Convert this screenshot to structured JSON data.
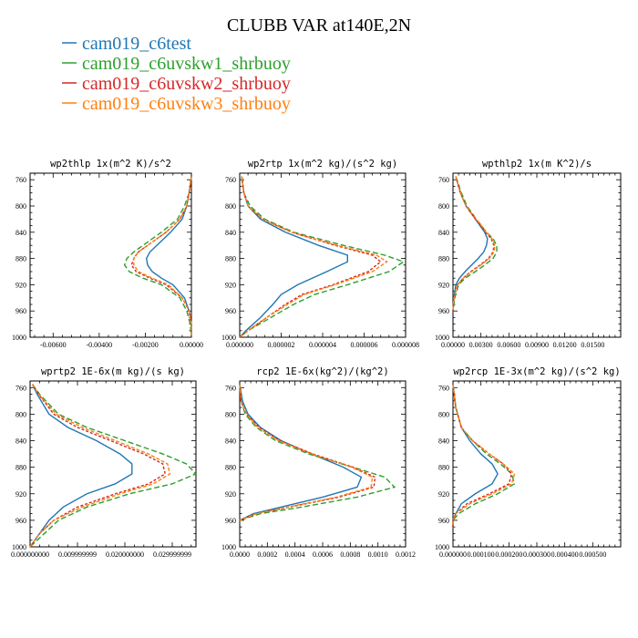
{
  "figure": {
    "title": "CLUBB VAR at140E,2N",
    "legend": [
      {
        "name": "cam019_c6test",
        "color": "#1f77b4"
      },
      {
        "name": "cam019_c6uvskw1_shrbuoy",
        "color": "#2ca02c"
      },
      {
        "name": "cam019_c6uvskw2_shrbuoy",
        "color": "#d62728"
      },
      {
        "name": "cam019_c6uvskw3_shrbuoy",
        "color": "#ff7f0e"
      }
    ]
  },
  "chart_data": [
    {
      "type": "line",
      "title": "wp2thlp  1x(m^2 K)/s^2",
      "xlim": [
        -0.007,
        0.0
      ],
      "ylim": [
        1000,
        750
      ],
      "xticks": [
        -0.006,
        -0.004,
        -0.002,
        0.0
      ],
      "xtick_labels": [
        "-0.00600",
        "-0.00400",
        "-0.00200",
        "0.00000"
      ],
      "yticks": [
        760,
        800,
        840,
        880,
        920,
        960,
        1000
      ],
      "ytick_labels": [
        "760",
        "800",
        "840",
        "880",
        "920",
        "960",
        "1000"
      ],
      "y": [
        755,
        780,
        800,
        820,
        840,
        860,
        870,
        880,
        890,
        900,
        910,
        920,
        940,
        960,
        980,
        1000
      ],
      "series": [
        {
          "values": [
            0.0,
            -0.0001,
            -0.0002,
            -0.0004,
            -0.0009,
            -0.0015,
            -0.0018,
            -0.00195,
            -0.0019,
            -0.0017,
            -0.0013,
            -0.0008,
            -0.0003,
            -0.0001,
            0.0,
            0.0
          ]
        },
        {
          "values": [
            0.0,
            -0.0001,
            -0.0003,
            -0.0006,
            -0.0013,
            -0.0021,
            -0.0025,
            -0.0028,
            -0.0029,
            -0.0027,
            -0.0021,
            -0.0013,
            -0.0005,
            -0.0002,
            -5e-05,
            0.0
          ]
        },
        {
          "values": [
            0.0,
            -0.0001,
            -0.0002,
            -0.0005,
            -0.0011,
            -0.0019,
            -0.0023,
            -0.0025,
            -0.0026,
            -0.0024,
            -0.0018,
            -0.0011,
            -0.0004,
            -0.0001,
            0.0,
            0.0
          ]
        },
        {
          "values": [
            0.0,
            -0.0001,
            -0.0002,
            -0.0005,
            -0.0011,
            -0.0019,
            -0.0023,
            -0.0025,
            -0.0025,
            -0.0023,
            -0.0017,
            -0.001,
            -0.0004,
            -0.0001,
            0.0,
            0.0
          ]
        }
      ]
    },
    {
      "type": "line",
      "title": "wp2rtp  1x(m^2 kg)/(s^2 kg)",
      "xlim": [
        0.0,
        8e-06
      ],
      "ylim": [
        1000,
        750
      ],
      "xticks": [
        0.0,
        2e-06,
        4e-06,
        6e-06,
        8e-06
      ],
      "xtick_labels": [
        "0.000000",
        "0.000002",
        "0.000004",
        "0.000006",
        "0.000008"
      ],
      "yticks": [
        760,
        800,
        840,
        880,
        920,
        960,
        1000
      ],
      "ytick_labels": [
        "760",
        "800",
        "840",
        "880",
        "920",
        "960",
        "1000"
      ],
      "y": [
        755,
        780,
        800,
        820,
        840,
        860,
        875,
        885,
        900,
        920,
        935,
        950,
        970,
        990,
        1000
      ],
      "series": [
        {
          "values": [
            1e-07,
            2e-07,
            4e-07,
            1e-06,
            2.2e-06,
            3.8e-06,
            5.2e-06,
            5.2e-06,
            4.2e-06,
            2.8e-06,
            2e-06,
            1.6e-06,
            1e-06,
            3e-07,
            0.0
          ]
        },
        {
          "values": [
            1e-07,
            2e-07,
            5e-07,
            1.2e-06,
            2.6e-06,
            5e-06,
            7e-06,
            7.9e-06,
            7.2e-06,
            5.2e-06,
            3.6e-06,
            2.6e-06,
            1.5e-06,
            4e-07,
            0.0
          ]
        },
        {
          "values": [
            1e-07,
            2e-07,
            4e-07,
            1.1e-06,
            2.5e-06,
            4.6e-06,
            6.4e-06,
            6.8e-06,
            6.2e-06,
            4.5e-06,
            3e-06,
            2.2e-06,
            1.3e-06,
            4e-07,
            0.0
          ]
        },
        {
          "values": [
            1e-07,
            2e-07,
            4e-07,
            1.1e-06,
            2.5e-06,
            4.7e-06,
            6.6e-06,
            7.1e-06,
            6.4e-06,
            4.6e-06,
            3.1e-06,
            2.3e-06,
            1.3e-06,
            4e-07,
            0.0
          ]
        }
      ]
    },
    {
      "type": "line",
      "title": "wpthlp2  1x(m K^2)/s",
      "xlim": [
        0.0,
        0.018
      ],
      "ylim": [
        1000,
        750
      ],
      "xticks": [
        0.0,
        0.003,
        0.006,
        0.009,
        0.012,
        0.015
      ],
      "xtick_labels": [
        "0.00000",
        "0.00300",
        "0.00600",
        "0.00900",
        "0.01200",
        "0.01500"
      ],
      "yticks": [
        760,
        800,
        840,
        880,
        920,
        960,
        1000
      ],
      "ytick_labels": [
        "760",
        "800",
        "840",
        "880",
        "920",
        "960",
        "1000"
      ],
      "y": [
        755,
        780,
        800,
        820,
        840,
        850,
        860,
        870,
        880,
        890,
        900,
        910,
        920,
        940,
        960
      ],
      "series": [
        {
          "values": [
            0.0003,
            0.0008,
            0.0014,
            0.0024,
            0.0034,
            0.0037,
            0.0036,
            0.0033,
            0.0027,
            0.002,
            0.0013,
            0.0007,
            0.0003,
            0.0001,
            0.0
          ]
        },
        {
          "values": [
            0.0003,
            0.0009,
            0.0015,
            0.0025,
            0.0036,
            0.0043,
            0.0047,
            0.0047,
            0.0043,
            0.0034,
            0.0024,
            0.0013,
            0.0006,
            0.0002,
            0.0
          ]
        },
        {
          "values": [
            0.0003,
            0.0008,
            0.0014,
            0.0024,
            0.0035,
            0.0041,
            0.0044,
            0.0043,
            0.0038,
            0.0029,
            0.0019,
            0.0011,
            0.0005,
            0.0001,
            0.0
          ]
        },
        {
          "values": [
            0.0003,
            0.0008,
            0.0014,
            0.0025,
            0.0036,
            0.0042,
            0.0045,
            0.0044,
            0.0039,
            0.003,
            0.002,
            0.0011,
            0.0005,
            0.0001,
            0.0
          ]
        }
      ]
    },
    {
      "type": "line",
      "title": "wprtp2  1E-6x(m kg)/(s kg)",
      "xlim": [
        0.0,
        0.035
      ],
      "ylim": [
        1000,
        750
      ],
      "xticks": [
        0.0,
        0.01,
        0.02,
        0.03
      ],
      "xtick_labels": [
        "0.000000000",
        "0.009999999",
        "0.020000000",
        "0.029999999"
      ],
      "yticks": [
        760,
        800,
        840,
        880,
        920,
        960,
        1000
      ],
      "ytick_labels": [
        "760",
        "800",
        "840",
        "880",
        "920",
        "960",
        "1000"
      ],
      "y": [
        755,
        770,
        800,
        820,
        840,
        860,
        875,
        890,
        905,
        920,
        940,
        960,
        980,
        1000
      ],
      "series": [
        {
          "values": [
            0.0005,
            0.0015,
            0.004,
            0.008,
            0.014,
            0.019,
            0.0215,
            0.0215,
            0.018,
            0.012,
            0.007,
            0.004,
            0.002,
            0.0
          ]
        },
        {
          "values": [
            0.0005,
            0.002,
            0.006,
            0.012,
            0.02,
            0.028,
            0.033,
            0.035,
            0.03,
            0.021,
            0.012,
            0.006,
            0.003,
            0.0
          ]
        },
        {
          "values": [
            0.0005,
            0.0018,
            0.005,
            0.01,
            0.017,
            0.024,
            0.028,
            0.0285,
            0.025,
            0.018,
            0.01,
            0.005,
            0.002,
            0.0
          ]
        },
        {
          "values": [
            0.0005,
            0.0018,
            0.0055,
            0.011,
            0.018,
            0.025,
            0.029,
            0.0295,
            0.026,
            0.019,
            0.011,
            0.005,
            0.002,
            0.0
          ]
        }
      ]
    },
    {
      "type": "line",
      "title": "rcp2  1E-6x(kg^2)/(kg^2)",
      "xlim": [
        0.0,
        0.0012
      ],
      "ylim": [
        1000,
        750
      ],
      "xticks": [
        0.0,
        0.0002,
        0.0004,
        0.0006,
        0.0008,
        0.001,
        0.0012
      ],
      "xtick_labels": [
        "0.0000",
        "0.0002",
        "0.0004",
        "0.0006",
        "0.0008",
        "0.0010",
        "0.0012"
      ],
      "yticks": [
        760,
        800,
        840,
        880,
        920,
        960,
        1000
      ],
      "ytick_labels": [
        "760",
        "800",
        "840",
        "880",
        "920",
        "960",
        "1000"
      ],
      "y": [
        755,
        780,
        800,
        820,
        840,
        860,
        880,
        895,
        910,
        925,
        940,
        950,
        960
      ],
      "series": [
        {
          "values": [
            0.0,
            2e-05,
            6e-05,
            0.00015,
            0.0003,
            0.00052,
            0.00075,
            0.00088,
            0.00085,
            0.0006,
            0.0003,
            0.0001,
            0.0
          ]
        },
        {
          "values": [
            0.0,
            1e-05,
            4e-05,
            0.00012,
            0.00026,
            0.0005,
            0.00082,
            0.00105,
            0.00112,
            0.00085,
            0.00045,
            0.00015,
            0.0
          ]
        },
        {
          "values": [
            0.0,
            1e-05,
            5e-05,
            0.00014,
            0.00029,
            0.00053,
            0.00082,
            0.00098,
            0.00097,
            0.00072,
            0.00036,
            0.00012,
            0.0
          ]
        },
        {
          "values": [
            0.0,
            1e-05,
            5e-05,
            0.00013,
            0.00028,
            0.00052,
            0.00081,
            0.00096,
            0.00095,
            0.0007,
            0.00035,
            0.00012,
            0.0
          ]
        }
      ]
    },
    {
      "type": "line",
      "title": "wp2rcp  1E-3x(m^2 kg)/(s^2 kg)",
      "xlim": [
        0.0,
        0.0006
      ],
      "ylim": [
        1000,
        750
      ],
      "xticks": [
        0.0,
        0.0001,
        0.0002,
        0.0003,
        0.0004,
        0.0005
      ],
      "xtick_labels": [
        "0.000000",
        "0.000100",
        "0.000200",
        "0.000300",
        "0.000400",
        "0.000500"
      ],
      "yticks": [
        760,
        800,
        840,
        880,
        920,
        960,
        1000
      ],
      "ytick_labels": [
        "760",
        "800",
        "840",
        "880",
        "920",
        "960",
        "1000"
      ],
      "y": [
        755,
        790,
        820,
        840,
        860,
        875,
        890,
        905,
        920,
        935,
        950,
        960,
        970
      ],
      "series": [
        {
          "values": [
            0.0,
            1e-05,
            3e-05,
            6e-05,
            0.0001,
            0.00014,
            0.00016,
            0.00014,
            8e-05,
            3e-05,
            1e-05,
            0.0,
            0.0
          ]
        },
        {
          "values": [
            0.0,
            1e-05,
            3e-05,
            7e-05,
            0.00012,
            0.00017,
            0.00021,
            0.00022,
            0.00016,
            8e-05,
            2e-05,
            0.0,
            0.0
          ]
        },
        {
          "values": [
            0.0,
            1e-05,
            3e-05,
            7e-05,
            0.00013,
            0.00018,
            0.00021,
            0.0002,
            0.00013,
            5e-05,
            1e-05,
            0.0,
            0.0
          ]
        },
        {
          "values": [
            0.0,
            1e-05,
            3e-05,
            7e-05,
            0.00013,
            0.00018,
            0.00022,
            0.00021,
            0.00014,
            6e-05,
            1e-05,
            0.0,
            0.0
          ]
        }
      ]
    }
  ]
}
